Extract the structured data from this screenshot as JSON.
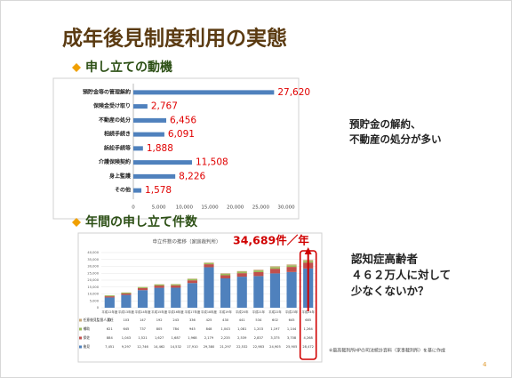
{
  "title": "成年後見制度利用の実態",
  "chart_data": [
    {
      "type": "barh",
      "title": "申し立ての動機",
      "categories": [
        "預貯金等の管理解約",
        "保険金受け取り",
        "不動産の処分",
        "相続手続き",
        "訴訟手続等",
        "介護保険契約",
        "身上監護",
        "その他"
      ],
      "values": [
        27620,
        2767,
        6456,
        6091,
        1888,
        11508,
        8226,
        1578
      ],
      "value_labels": [
        "27,620",
        "2,767",
        "6,456",
        "6,091",
        "1,888",
        "11,508",
        "8,226",
        "1,578"
      ],
      "color": "#4f81bd",
      "label_color": "#e00000",
      "xlim": [
        0,
        30000
      ],
      "xticks": [
        0,
        {
          "value": 5000,
          "label": "5,000"
        },
        {
          "value": 10000,
          "label": "10,000"
        },
        {
          "value": 15000,
          "label": "15,000"
        },
        {
          "value": 20000,
          "label": "20,000"
        },
        {
          "value": 25000,
          "label": "25,000"
        },
        {
          "value": 30000,
          "label": "30,000"
        }
      ],
      "grid": false
    },
    {
      "type": "stacked_bar",
      "title": "年間の申し立て件数",
      "subtitle": "申立件数の推移（家庭裁判所）",
      "annotation": "34,689件／年",
      "categories": [
        "平成12年度",
        "平成13年度",
        "平成14年度",
        "平成15年度",
        "平成16年度",
        "平成17年度",
        "平成18年度",
        "平成19年",
        "平成20年",
        "平成21年",
        "平成22年",
        "平成23年",
        "平成24年"
      ],
      "series": [
        {
          "name": "後見",
          "color": "#4f81bd",
          "values": [
            7451,
            9297,
            12746,
            14462,
            14532,
            17910,
            29380,
            21297,
            22532,
            22983,
            24905,
            25905,
            28472
          ],
          "value_labels": [
            "7,451",
            "9,297",
            "12,746",
            "14,462",
            "14,532",
            "17,910",
            "29,380",
            "21,297",
            "22,532",
            "22,983",
            "24,905",
            "25,905",
            "28,472"
          ]
        },
        {
          "name": "保佐",
          "color": "#c0504d",
          "values": [
            884,
            1043,
            1521,
            1627,
            1687,
            1968,
            2179,
            2235,
            2539,
            2837,
            3375,
            3708,
            4268
          ],
          "value_labels": [
            "884",
            "1,043",
            "1,521",
            "1,627",
            "1,687",
            "1,968",
            "2,179",
            "2,235",
            "2,539",
            "2,837",
            "3,375",
            "3,708",
            "4,268"
          ]
        },
        {
          "name": "補助",
          "color": "#9bbb59",
          "values": [
            621,
            645,
            737,
            805,
            784,
            945,
            848,
            1043,
            1081,
            1203,
            1197,
            1144,
            1264
          ],
          "value_labels": [
            "621",
            "645",
            "737",
            "805",
            "784",
            "945",
            "848",
            "1,043",
            "1,081",
            "1,203",
            "1,197",
            "1,144",
            "1,264"
          ]
        },
        {
          "name": "任意後見監督人選任",
          "color": "#c8a878",
          "values": [
            51,
            103,
            147,
            192,
            243,
            336,
            425,
            430,
            441,
            534,
            602,
            645,
            685
          ],
          "value_labels": [
            "51",
            "103",
            "147",
            "192",
            "243",
            "336",
            "425",
            "430",
            "441",
            "534",
            "602",
            "645",
            "685"
          ]
        }
      ],
      "ylim": [
        0,
        40000
      ],
      "yticks": [
        0,
        {
          "value": 5000,
          "label": "5,000"
        },
        {
          "value": 10000,
          "label": "10,000"
        },
        {
          "value": 15000,
          "label": "15,000"
        },
        {
          "value": 20000,
          "label": "20,000"
        },
        {
          "value": 25000,
          "label": "25,000"
        },
        {
          "value": 30000,
          "label": "30,000"
        },
        {
          "value": 35000,
          "label": "35,000"
        },
        {
          "value": 40000,
          "label": "40,000"
        }
      ],
      "grid": true
    }
  ],
  "notes": [
    [
      "預貯金の解約、",
      "不動産の処分が多い"
    ],
    [
      "認知症高齢者",
      "４６２万人に対して",
      "少なくないか？"
    ]
  ],
  "footnote": "※最高裁判所HPの司法統計資料（家事裁判所）を基に作成",
  "page_number": "4"
}
